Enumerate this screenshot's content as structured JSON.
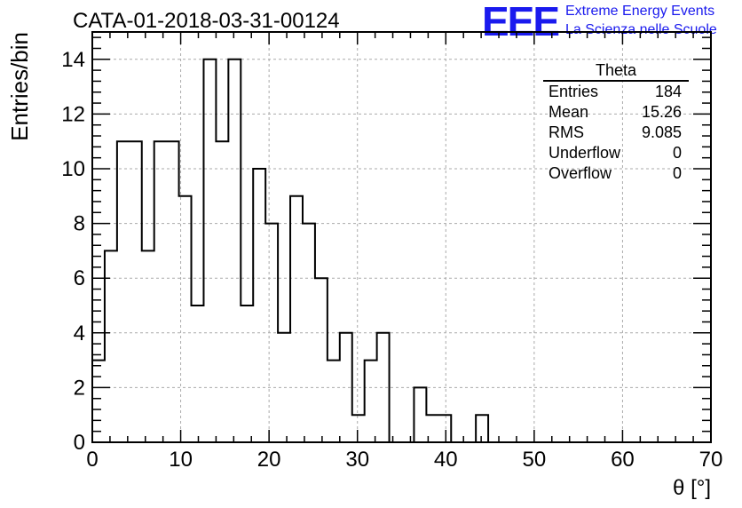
{
  "title": "CATA-01-2018-03-31-00124",
  "logo": {
    "mark": "EEE",
    "line1": "Extreme Energy Events",
    "line2": "La Scienza nelle Scuole",
    "color": "#1a1aee"
  },
  "stats_box": {
    "title": "Theta",
    "rows": [
      {
        "label": "Entries",
        "value": "184"
      },
      {
        "label": "Mean",
        "value": "15.26"
      },
      {
        "label": "RMS",
        "value": "9.085"
      },
      {
        "label": "Underflow",
        "value": "0"
      },
      {
        "label": "Overflow",
        "value": "0"
      }
    ]
  },
  "chart_data": {
    "type": "bar",
    "style": "step-histogram",
    "title": "CATA-01-2018-03-31-00124",
    "xlabel": "θ [°]",
    "ylabel": "Entries/bin",
    "xlim": [
      0,
      70
    ],
    "ylim": [
      0,
      15
    ],
    "bin_width": 1.4,
    "x_ticks": [
      0,
      10,
      20,
      30,
      40,
      50,
      60,
      70
    ],
    "y_ticks": [
      0,
      2,
      4,
      6,
      8,
      10,
      12,
      14
    ],
    "grid": true,
    "bin_edges_start": 0,
    "values": [
      3,
      7,
      11,
      11,
      7,
      11,
      11,
      9,
      5,
      14,
      11,
      14,
      5,
      10,
      8,
      4,
      9,
      8,
      6,
      3,
      4,
      1,
      3,
      4,
      0,
      0,
      2,
      1,
      1,
      0,
      0,
      1,
      0,
      0,
      0,
      0,
      0,
      0,
      0,
      0,
      0,
      0,
      0,
      0,
      0,
      0,
      0,
      0,
      0,
      0
    ]
  }
}
